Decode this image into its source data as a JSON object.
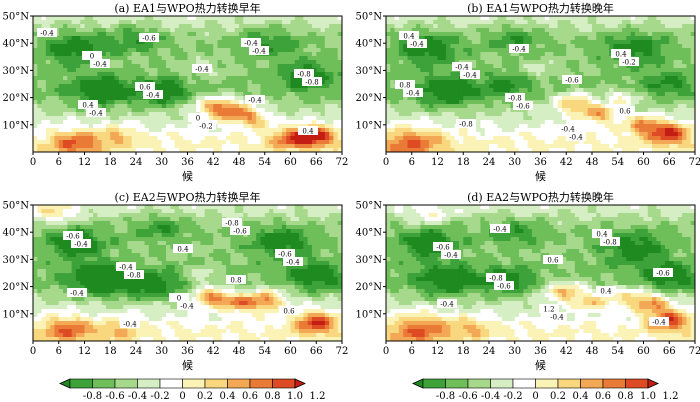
{
  "chart_data": [
    {
      "type": "heatmap",
      "title": "(a) EA1与WPO热力转换早年",
      "xlabel": "候",
      "x_ticks": [
        0,
        6,
        12,
        18,
        24,
        30,
        36,
        42,
        48,
        54,
        60,
        66,
        72
      ],
      "y_ticks": [
        "10°N",
        "20°N",
        "30°N",
        "40°N",
        "50°N"
      ],
      "xlim": [
        0,
        72
      ],
      "ylim": [
        0,
        50
      ],
      "contour_labels": [
        "-0.4",
        "-0.4",
        "-0.4",
        "-0.2",
        "-0.4",
        "-0.8",
        "-0.4",
        "-0.6",
        "-0.4",
        "-0.4",
        "0.4",
        "0",
        "0.6",
        "0",
        "-0.4",
        "-0.8",
        "0.4"
      ],
      "blobs": [
        {
          "x": 47,
          "y": 15,
          "v": 1.0,
          "r": 4
        },
        {
          "x": 42,
          "y": 17,
          "v": 0.8,
          "r": 3.5
        },
        {
          "x": 52,
          "y": 12,
          "v": 0.6,
          "r": 3
        },
        {
          "x": 66,
          "y": 6,
          "v": 1.1,
          "r": 4
        },
        {
          "x": 60,
          "y": 5,
          "v": 0.8,
          "r": 4
        },
        {
          "x": 10,
          "y": 3,
          "v": 0.8,
          "r": 5
        },
        {
          "x": 20,
          "y": 6,
          "v": 0.4,
          "r": 4
        },
        {
          "x": 16,
          "y": 22,
          "v": -0.6,
          "r": 6
        },
        {
          "x": 30,
          "y": 22,
          "v": -0.6,
          "r": 5
        },
        {
          "x": 10,
          "y": 38,
          "v": -0.6,
          "r": 6
        },
        {
          "x": 55,
          "y": 40,
          "v": -0.4,
          "r": 6
        },
        {
          "x": 64,
          "y": 28,
          "v": -0.6,
          "r": 5
        },
        {
          "x": 24,
          "y": 42,
          "v": -0.4,
          "r": 5
        },
        {
          "x": 40,
          "y": 30,
          "v": 0.2,
          "r": 4
        }
      ]
    },
    {
      "type": "heatmap",
      "title": "(b) EA1与WPO热力转换晚年",
      "xlabel": "候",
      "x_ticks": [
        0,
        6,
        12,
        18,
        24,
        30,
        36,
        42,
        48,
        54,
        60,
        66,
        72
      ],
      "y_ticks": [
        "10°N",
        "20°N",
        "30°N",
        "40°N",
        "50°N"
      ],
      "xlim": [
        0,
        72
      ],
      "ylim": [
        0,
        50
      ],
      "contour_labels": [
        "-0.4",
        "-0.4",
        "-0.6",
        "-0.4",
        "-0.2",
        "-0.4",
        "-0.8",
        "-0.4",
        "-0.6",
        "0.6",
        "0.4",
        "-0.4",
        "-0.8",
        "-0.4",
        "0.4",
        "0.8"
      ],
      "blobs": [
        {
          "x": 44,
          "y": 18,
          "v": 0.9,
          "r": 4
        },
        {
          "x": 50,
          "y": 14,
          "v": 0.8,
          "r": 3.5
        },
        {
          "x": 55,
          "y": 20,
          "v": 0.6,
          "r": 3
        },
        {
          "x": 66,
          "y": 7,
          "v": 1.1,
          "r": 4
        },
        {
          "x": 60,
          "y": 10,
          "v": 0.8,
          "r": 3.5
        },
        {
          "x": 6,
          "y": 3,
          "v": 0.8,
          "r": 6
        },
        {
          "x": 14,
          "y": 22,
          "v": -0.6,
          "r": 6
        },
        {
          "x": 28,
          "y": 24,
          "v": -0.4,
          "r": 5
        },
        {
          "x": 10,
          "y": 38,
          "v": -0.6,
          "r": 6
        },
        {
          "x": 58,
          "y": 38,
          "v": -0.6,
          "r": 6
        },
        {
          "x": 66,
          "y": 25,
          "v": -0.4,
          "r": 5
        },
        {
          "x": 30,
          "y": 42,
          "v": -0.4,
          "r": 5
        },
        {
          "x": 36,
          "y": 30,
          "v": 0.3,
          "r": 3
        }
      ]
    },
    {
      "type": "heatmap",
      "title": "(c) EA2与WPO热力转换早年",
      "xlabel": "候",
      "x_ticks": [
        0,
        6,
        12,
        18,
        24,
        30,
        36,
        42,
        48,
        54,
        60,
        66,
        72
      ],
      "y_ticks": [
        "10°N",
        "20°N",
        "30°N",
        "40°N",
        "50°N"
      ],
      "xlim": [
        0,
        72
      ],
      "ylim": [
        0,
        50
      ],
      "contour_labels": [
        "-0.4",
        "-0.8",
        "-0.4",
        "-0.6",
        "-0.4",
        "-0.4",
        "-0.4",
        "0.4",
        "0.8",
        "0.6",
        "-0.6",
        "-0.4",
        "0",
        "-0.8",
        "-0.6"
      ],
      "blobs": [
        {
          "x": 42,
          "y": 16,
          "v": 1.1,
          "r": 3.5
        },
        {
          "x": 48,
          "y": 14,
          "v": 0.8,
          "r": 3
        },
        {
          "x": 54,
          "y": 15,
          "v": 1.0,
          "r": 4
        },
        {
          "x": 66,
          "y": 7,
          "v": 1.1,
          "r": 4
        },
        {
          "x": 40,
          "y": 24,
          "v": 0.4,
          "r": 3
        },
        {
          "x": 8,
          "y": 4,
          "v": 0.8,
          "r": 5
        },
        {
          "x": 20,
          "y": 4,
          "v": 0.4,
          "r": 4
        },
        {
          "x": 5,
          "y": 47,
          "v": 0.6,
          "r": 4
        },
        {
          "x": 16,
          "y": 22,
          "v": -0.8,
          "r": 6
        },
        {
          "x": 28,
          "y": 20,
          "v": -0.6,
          "r": 5
        },
        {
          "x": 10,
          "y": 36,
          "v": -0.6,
          "r": 6
        },
        {
          "x": 58,
          "y": 36,
          "v": -0.6,
          "r": 6
        },
        {
          "x": 66,
          "y": 24,
          "v": -0.6,
          "r": 5
        },
        {
          "x": 30,
          "y": 42,
          "v": -0.4,
          "r": 5
        }
      ]
    },
    {
      "type": "heatmap",
      "title": "(d) EA2与WPO热力转换晚年",
      "xlabel": "候",
      "x_ticks": [
        0,
        6,
        12,
        18,
        24,
        30,
        36,
        42,
        48,
        54,
        60,
        66,
        72
      ],
      "y_ticks": [
        "10°N",
        "20°N",
        "30°N",
        "40°N",
        "50°N"
      ],
      "xlim": [
        0,
        72
      ],
      "ylim": [
        0,
        50
      ],
      "contour_labels": [
        "-0.4",
        "-0.6",
        "-0.4",
        "-0.8",
        "-0.6",
        "-0.4",
        "-0.4",
        "0.6",
        "0.4",
        "-0.4",
        "-0.6",
        "-0.8",
        "1.2",
        "0.4"
      ],
      "blobs": [
        {
          "x": 42,
          "y": 18,
          "v": 0.9,
          "r": 4
        },
        {
          "x": 48,
          "y": 14,
          "v": 0.6,
          "r": 3
        },
        {
          "x": 56,
          "y": 16,
          "v": 0.6,
          "r": 4
        },
        {
          "x": 66,
          "y": 8,
          "v": 1.1,
          "r": 4
        },
        {
          "x": 62,
          "y": 14,
          "v": 0.8,
          "r": 3.5
        },
        {
          "x": 8,
          "y": 4,
          "v": 0.8,
          "r": 6
        },
        {
          "x": 20,
          "y": 5,
          "v": 0.4,
          "r": 4
        },
        {
          "x": 10,
          "y": 46,
          "v": 0.4,
          "r": 4
        },
        {
          "x": 14,
          "y": 22,
          "v": -0.6,
          "r": 6
        },
        {
          "x": 28,
          "y": 22,
          "v": -0.6,
          "r": 5
        },
        {
          "x": 10,
          "y": 36,
          "v": -0.6,
          "r": 6
        },
        {
          "x": 58,
          "y": 34,
          "v": -0.6,
          "r": 6
        },
        {
          "x": 66,
          "y": 24,
          "v": -0.6,
          "r": 5
        },
        {
          "x": 30,
          "y": 40,
          "v": -0.4,
          "r": 5
        }
      ]
    }
  ],
  "colorbar": {
    "ticks": [
      "-0.8",
      "-0.6",
      "-0.4",
      "-0.2",
      "0",
      "0.2",
      "0.4",
      "0.6",
      "0.8",
      "1.0",
      "1.2"
    ],
    "colors": [
      "#1f8a1f",
      "#3da23a",
      "#6ebf5a",
      "#a6d98c",
      "#d6eec4",
      "#ffffff",
      "#fbf3b5",
      "#f8d77f",
      "#f2a854",
      "#ea7b37",
      "#dd4a24",
      "#c41e14"
    ]
  }
}
